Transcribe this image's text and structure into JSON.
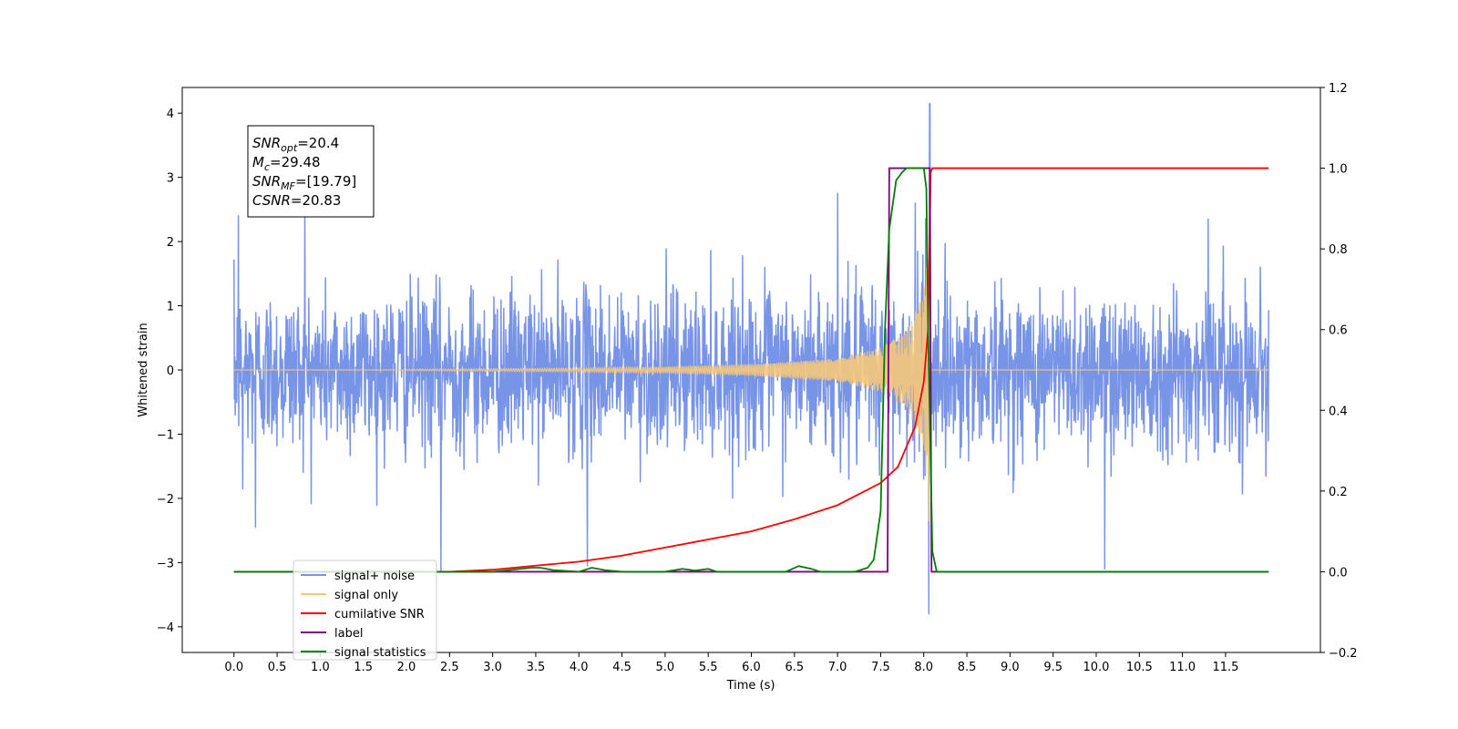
{
  "chart_data": {
    "type": "line",
    "title": "",
    "xlabel": "Time (s)",
    "ylabel": "Whitened strain",
    "xlim": [
      -0.6,
      12.6
    ],
    "ylim": [
      -4.4,
      4.4
    ],
    "y2lim": [
      -0.2,
      1.2
    ],
    "x_ticks": [
      "0.0",
      "0.5",
      "1.0",
      "1.5",
      "2.0",
      "2.5",
      "3.0",
      "3.5",
      "4.0",
      "4.5",
      "5.0",
      "5.5",
      "6.0",
      "6.5",
      "7.0",
      "7.5",
      "8.0",
      "8.5",
      "9.0",
      "9.5",
      "10.0",
      "10.5",
      "11.0",
      "11.5"
    ],
    "y_ticks": [
      "4",
      "3",
      "2",
      "1",
      "0",
      "−1",
      "−2",
      "−3",
      "−4"
    ],
    "y2_ticks": [
      "1.2",
      "1.0",
      "0.8",
      "0.6",
      "0.4",
      "0.2",
      "0.0",
      "−0.2"
    ],
    "grid": false,
    "legend_position": "lower-left",
    "legend": [
      {
        "name": "signal+ noise",
        "color": "#7894e6"
      },
      {
        "name": "signal only",
        "color": "#f5c77a"
      },
      {
        "name": "cumilative SNR",
        "color": "#ff0000"
      },
      {
        "name": "label",
        "color": "#800080"
      },
      {
        "name": "signal statistics",
        "color": "#008000"
      }
    ],
    "annotation": {
      "lines": [
        {
          "sym": "SNR",
          "sub": "opt",
          "val": "=20.4"
        },
        {
          "sym": "M",
          "sub": "c",
          "val": "=29.48"
        },
        {
          "sym": "SNR",
          "sub": "MF",
          "val": "=[19.79]"
        },
        {
          "sym": "CSNR",
          "sub": "",
          "val": "=20.83"
        }
      ]
    },
    "series": [
      {
        "name": "signal+ noise",
        "axis": "left",
        "color": "#7894e6",
        "x_range": [
          0.0,
          12.0
        ],
        "typical_amplitude": 1.6,
        "peak_points": [
          [
            0.05,
            2.4
          ],
          [
            0.1,
            -1.85
          ],
          [
            0.25,
            -2.45
          ],
          [
            0.82,
            2.55
          ],
          [
            2.4,
            -3.15
          ],
          [
            4.1,
            -3.05
          ],
          [
            7.0,
            2.75
          ],
          [
            7.9,
            2.6
          ],
          [
            8.07,
            4.15
          ],
          [
            8.06,
            -3.8
          ],
          [
            10.1,
            -3.1
          ],
          [
            11.3,
            2.35
          ]
        ]
      },
      {
        "name": "signal only",
        "axis": "left",
        "color": "#f5c77a",
        "type": "chirp",
        "x": [
          2.0,
          3.0,
          4.0,
          5.0,
          6.0,
          7.0,
          7.5,
          7.8,
          8.0,
          8.05,
          8.08
        ],
        "amplitude": [
          0.01,
          0.02,
          0.03,
          0.05,
          0.09,
          0.18,
          0.35,
          0.6,
          1.2,
          2.2,
          3.3
        ]
      },
      {
        "name": "cumilative SNR",
        "axis": "right",
        "color": "#ff0000",
        "x": [
          0.0,
          2.5,
          3.0,
          3.5,
          4.0,
          4.5,
          5.0,
          5.5,
          6.0,
          6.5,
          7.0,
          7.5,
          7.7,
          7.9,
          8.0,
          8.05,
          8.08,
          8.1,
          12.0
        ],
        "y": [
          0.0,
          0.0,
          0.005,
          0.015,
          0.025,
          0.04,
          0.06,
          0.08,
          0.1,
          0.13,
          0.165,
          0.22,
          0.26,
          0.36,
          0.47,
          0.6,
          0.99,
          1.0,
          1.0
        ]
      },
      {
        "name": "label",
        "axis": "right",
        "color": "#800080",
        "x": [
          0.0,
          7.58,
          7.6,
          8.07,
          8.09,
          12.0
        ],
        "y": [
          0.0,
          0.0,
          1.0,
          1.0,
          0.0,
          0.0
        ]
      },
      {
        "name": "signal statistics",
        "axis": "right",
        "color": "#008000",
        "x": [
          0.0,
          3.0,
          3.45,
          3.55,
          3.7,
          4.0,
          4.15,
          4.3,
          4.5,
          5.0,
          5.2,
          5.35,
          5.5,
          5.6,
          6.0,
          6.4,
          6.55,
          6.7,
          6.8,
          7.2,
          7.35,
          7.42,
          7.5,
          7.55,
          7.6,
          7.68,
          7.75,
          7.8,
          7.9,
          8.0,
          8.03,
          8.05,
          8.1,
          8.15,
          12.0
        ],
        "y": [
          0.0,
          0.0,
          0.01,
          0.01,
          0.004,
          0.0,
          0.01,
          0.004,
          0.0,
          0.0,
          0.007,
          0.003,
          0.007,
          0.0,
          0.0,
          0.0,
          0.014,
          0.007,
          0.0,
          0.0,
          0.01,
          0.03,
          0.15,
          0.6,
          0.85,
          0.97,
          0.99,
          1.0,
          1.0,
          1.0,
          0.95,
          0.6,
          0.05,
          0.0,
          0.0
        ]
      }
    ]
  }
}
